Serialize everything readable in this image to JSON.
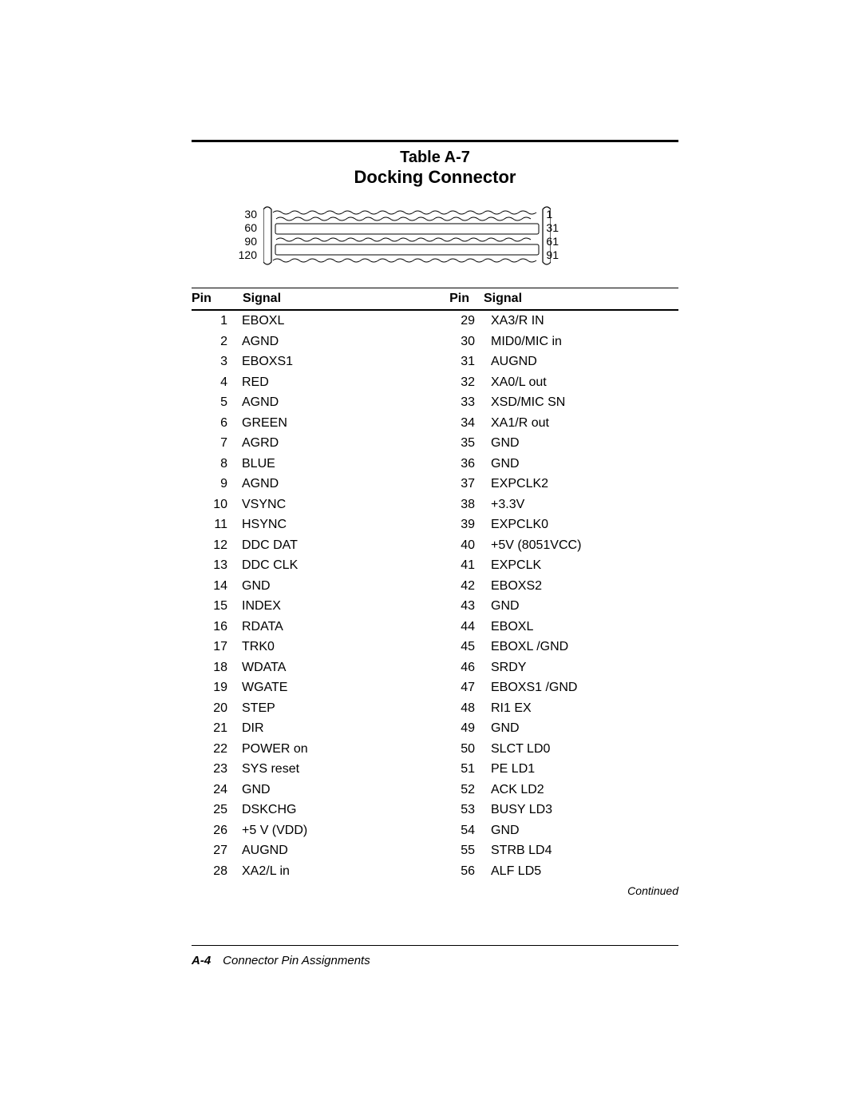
{
  "table_number": "Table A-7",
  "subtitle": "Docking Connector",
  "diagram": {
    "left_labels": [
      "30",
      "60",
      "90",
      "120"
    ],
    "right_labels": [
      "1",
      "31",
      "61",
      "91"
    ]
  },
  "headers": {
    "pin_left": "Pin",
    "signal_left": "Signal",
    "pin_right": "Pin",
    "signal_right": "Signal"
  },
  "rows": [
    {
      "pl": "1",
      "sl": "EBOXL",
      "pr": "29",
      "sr": "XA3/R IN"
    },
    {
      "pl": "2",
      "sl": "AGND",
      "pr": "30",
      "sr": "MID0/MIC in"
    },
    {
      "pl": "3",
      "sl": "EBOXS1",
      "pr": "31",
      "sr": "AUGND"
    },
    {
      "pl": "4",
      "sl": "RED",
      "pr": "32",
      "sr": "XA0/L out"
    },
    {
      "pl": "5",
      "sl": "AGND",
      "pr": "33",
      "sr": "XSD/MIC SN"
    },
    {
      "pl": "6",
      "sl": "GREEN",
      "pr": "34",
      "sr": "XA1/R out"
    },
    {
      "pl": "7",
      "sl": "AGRD",
      "pr": "35",
      "sr": "GND"
    },
    {
      "pl": "8",
      "sl": "BLUE",
      "pr": "36",
      "sr": "GND"
    },
    {
      "pl": "9",
      "sl": "AGND",
      "pr": "37",
      "sr": "EXPCLK2"
    },
    {
      "pl": "10",
      "sl": "VSYNC",
      "pr": "38",
      "sr": "+3.3V"
    },
    {
      "pl": "11",
      "sl": "HSYNC",
      "pr": "39",
      "sr": "EXPCLK0"
    },
    {
      "pl": "12",
      "sl": "DDC DAT",
      "pr": "40",
      "sr": "+5V (8051VCC)"
    },
    {
      "pl": "13",
      "sl": "DDC CLK",
      "pr": "41",
      "sr": "EXPCLK"
    },
    {
      "pl": "14",
      "sl": "GND",
      "pr": "42",
      "sr": "EBOXS2"
    },
    {
      "pl": "15",
      "sl": "INDEX",
      "pr": "43",
      "sr": "GND"
    },
    {
      "pl": "16",
      "sl": "RDATA",
      "pr": "44",
      "sr": "EBOXL"
    },
    {
      "pl": "17",
      "sl": "TRK0",
      "pr": "45",
      "sr": "EBOXL /GND"
    },
    {
      "pl": "18",
      "sl": "WDATA",
      "pr": "46",
      "sr": "SRDY"
    },
    {
      "pl": "19",
      "sl": "WGATE",
      "pr": "47",
      "sr": "EBOXS1 /GND"
    },
    {
      "pl": "20",
      "sl": "STEP",
      "pr": "48",
      "sr": "RI1 EX"
    },
    {
      "pl": "21",
      "sl": "DIR",
      "pr": "49",
      "sr": "GND"
    },
    {
      "pl": "22",
      "sl": "POWER on",
      "pr": "50",
      "sr": "SLCT LD0"
    },
    {
      "pl": "23",
      "sl": "SYS reset",
      "pr": "51",
      "sr": "PE LD1"
    },
    {
      "pl": "24",
      "sl": "GND",
      "pr": "52",
      "sr": "ACK LD2"
    },
    {
      "pl": "25",
      "sl": "DSKCHG",
      "pr": "53",
      "sr": "BUSY LD3"
    },
    {
      "pl": "26",
      "sl": "+5 V (VDD)",
      "pr": "54",
      "sr": "GND"
    },
    {
      "pl": "27",
      "sl": "AUGND",
      "pr": "55",
      "sr": "STRB LD4"
    },
    {
      "pl": "28",
      "sl": "XA2/L in",
      "pr": "56",
      "sr": "ALF LD5"
    }
  ],
  "continued_text": "Continued",
  "footer": {
    "pageref": "A-4",
    "section": "Connector Pin Assignments"
  }
}
